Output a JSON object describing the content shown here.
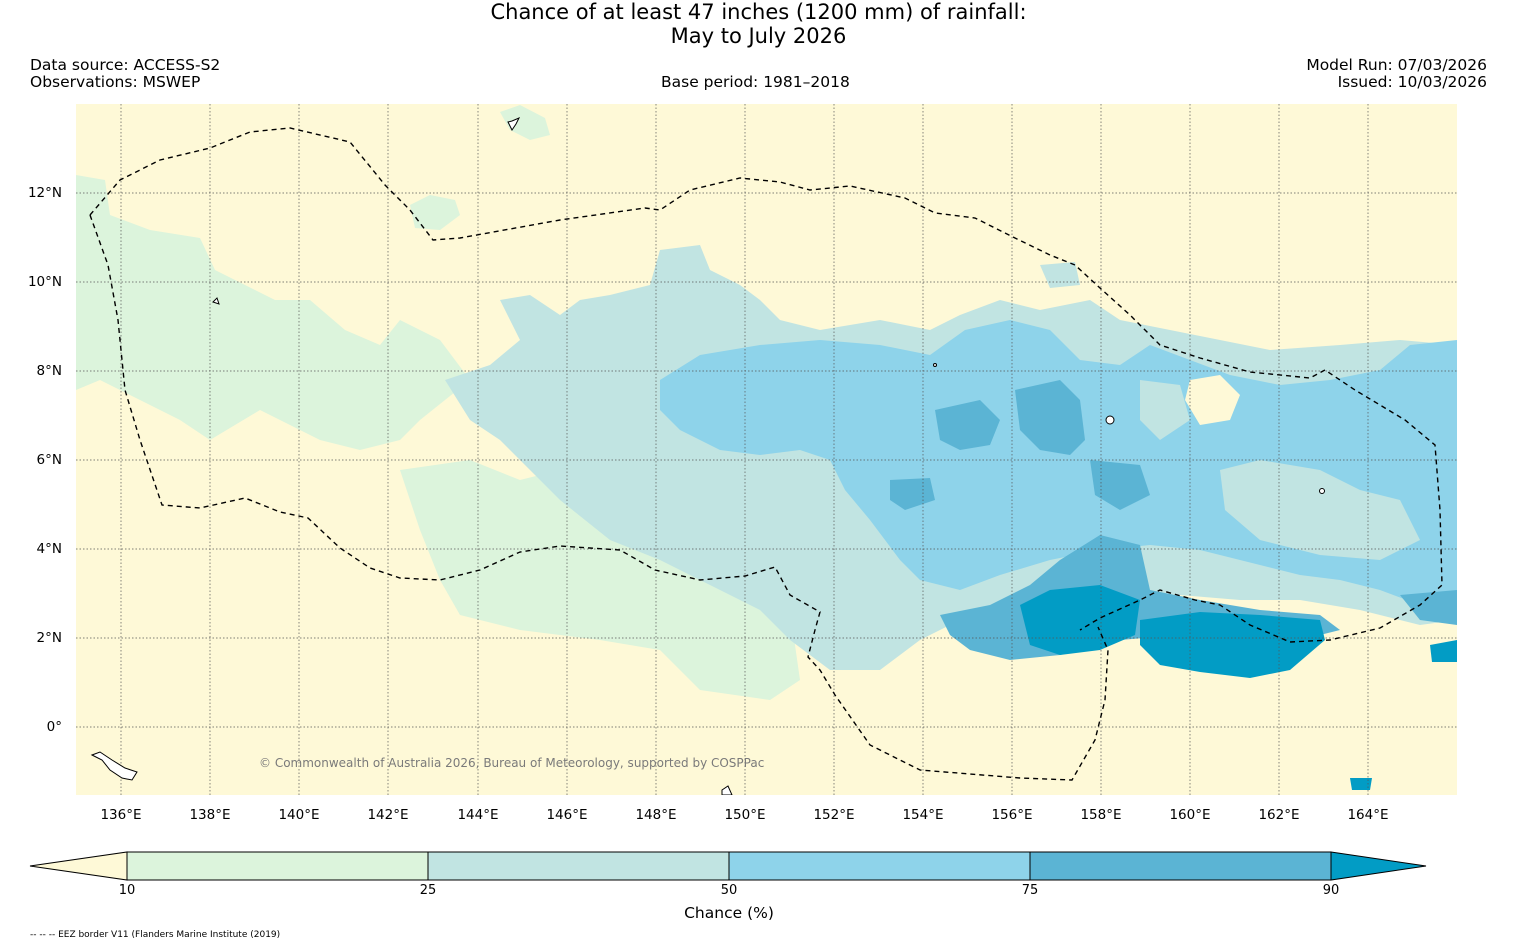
{
  "title": {
    "line1": "Chance of at least 47 inches (1200  mm) of rainfall:",
    "line2": "May to July 2026"
  },
  "header": {
    "data_source": "Data source: ACCESS-S2",
    "observations": "Observations: MSWEP",
    "base_period": "Base period: 1981–2018",
    "model_run": "Model Run: 07/03/2026",
    "issued": "Issued: 10/03/2026"
  },
  "map": {
    "copyright": "© Commonwealth of Australia 2026, Bureau of Meteorology, supported by COSPPac",
    "lat_labels": [
      "12°N",
      "10°N",
      "8°N",
      "6°N",
      "4°N",
      "2°N",
      "0°"
    ],
    "lon_labels": [
      "136°E",
      "138°E",
      "140°E",
      "142°E",
      "144°E",
      "146°E",
      "148°E",
      "150°E",
      "152°E",
      "154°E",
      "156°E",
      "158°E",
      "160°E",
      "162°E",
      "164°E"
    ],
    "colors": {
      "below_10": "#fef9d7",
      "10_25": "#dcf4dc",
      "25_50": "#c1e4e2",
      "50_75": "#8ed3ea",
      "75_90": "#5bb4d4",
      "above_90": "#029cc5"
    }
  },
  "colorbar": {
    "ticks": [
      "10",
      "25",
      "50",
      "75",
      "90"
    ],
    "label": "Chance (%)"
  },
  "footnote": "-- -- -- EEZ border V11 (Flanders Marine Institute (2019)"
}
